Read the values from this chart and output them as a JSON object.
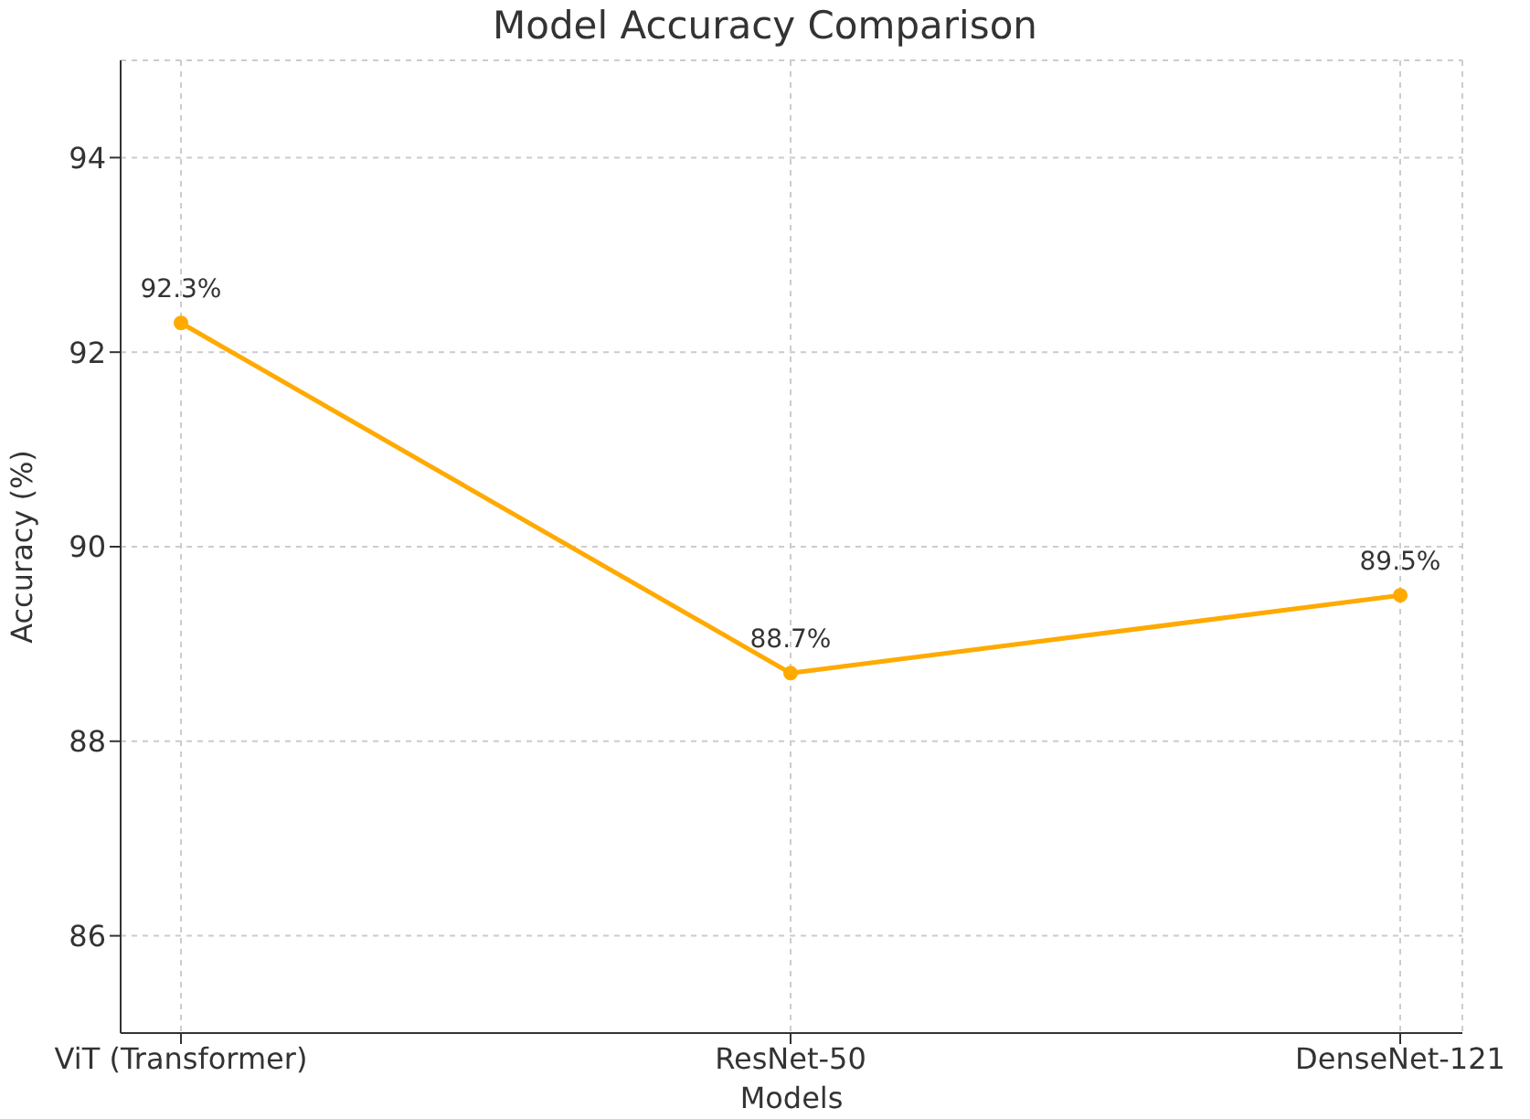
{
  "chart_data": {
    "type": "line",
    "title": "Model Accuracy Comparison",
    "xlabel": "Models",
    "ylabel": "Accuracy (%)",
    "categories": [
      "ViT (Transformer)",
      "ResNet-50",
      "DenseNet-121"
    ],
    "series": [
      {
        "color": "#ffaa00",
        "values": [
          92.3,
          88.7,
          89.5
        ],
        "value_labels": [
          "92.3%",
          "88.7%",
          "89.5%"
        ]
      }
    ],
    "ylim": [
      85,
      95
    ],
    "yticks": [
      86,
      88,
      90,
      92,
      94
    ],
    "grid": true,
    "marker": "circle",
    "line_style": "solid"
  }
}
